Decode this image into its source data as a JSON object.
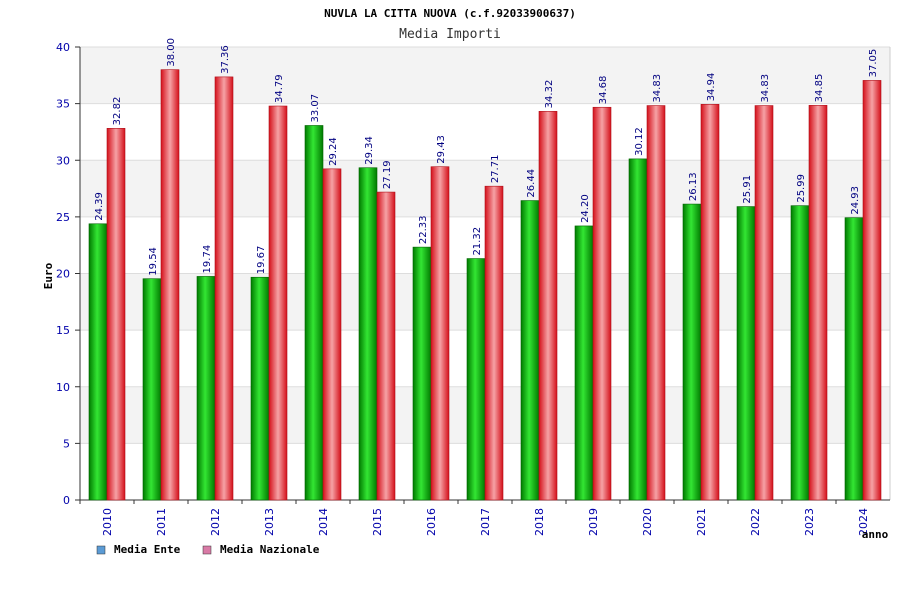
{
  "chart_data": {
    "type": "bar",
    "title": "NUVLA LA CITTA NUOVA (c.f.92033900637)",
    "subtitle": "Media Importi",
    "xlabel": "anno",
    "ylabel": "Euro",
    "ylim": [
      0,
      40
    ],
    "yticks": [
      "0",
      "5",
      "10",
      "15",
      "20",
      "25",
      "30",
      "35",
      "40"
    ],
    "grid": true,
    "legend_position": "bottom-left",
    "categories": [
      "2010",
      "2011",
      "2012",
      "2013",
      "2014",
      "2015",
      "2016",
      "2017",
      "2018",
      "2019",
      "2020",
      "2021",
      "2022",
      "2023",
      "2024"
    ],
    "series": [
      {
        "name": "Media Ente",
        "color": "#00b400",
        "legend_color": "#5b9bd5",
        "values": [
          24.39,
          19.54,
          19.74,
          19.67,
          33.07,
          29.34,
          22.33,
          21.32,
          26.44,
          24.2,
          30.12,
          26.13,
          25.91,
          25.99,
          24.93
        ],
        "labels": [
          "24.39",
          "19.54",
          "19.74",
          "19.67",
          "33.07",
          "29.34",
          "22.33",
          "21.32",
          "26.44",
          "24.20",
          "30.12",
          "26.13",
          "25.91",
          "25.99",
          "24.93"
        ]
      },
      {
        "name": "Media Nazionale",
        "color": "#e41e26",
        "legend_color": "#d97aa6",
        "values": [
          32.82,
          38.0,
          37.36,
          34.79,
          29.24,
          27.19,
          29.43,
          27.71,
          34.32,
          34.68,
          34.83,
          34.94,
          34.83,
          34.85,
          37.05
        ],
        "labels": [
          "32.82",
          "38.00",
          "37.36",
          "34.79",
          "29.24",
          "27.19",
          "29.43",
          "27.71",
          "34.32",
          "34.68",
          "34.83",
          "34.94",
          "34.83",
          "34.85",
          "37.05"
        ]
      }
    ]
  }
}
